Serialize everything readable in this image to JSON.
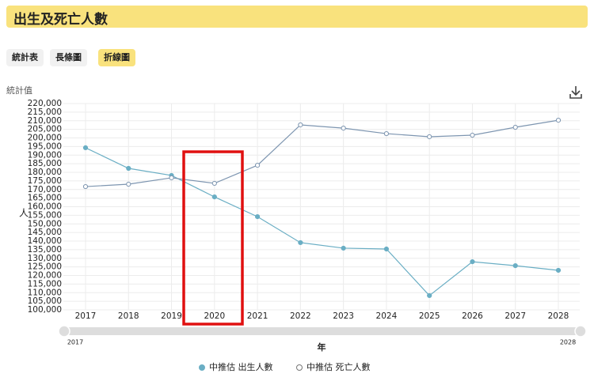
{
  "header": {
    "title": "出生及死亡人數"
  },
  "tabs": [
    "統計表",
    "長條圖",
    "折線圖"
  ],
  "value_caption": "統計值",
  "slider": {
    "start": "2017",
    "end": "2028"
  },
  "chart_data": {
    "type": "line",
    "y_label": "人",
    "x_label": "年",
    "categories": [
      "2017",
      "2018",
      "2019",
      "2020",
      "2021",
      "2022",
      "2023",
      "2024",
      "2025",
      "2026",
      "2027",
      "2028"
    ],
    "series": [
      {
        "name": "中推估 出生人數",
        "color": "#6aaec4",
        "marker": "filled",
        "values": [
          194300,
          182300,
          178200,
          165700,
          154200,
          139100,
          135900,
          135400,
          108300,
          128000,
          125700,
          123000
        ]
      },
      {
        "name": "中推估 死亡人數",
        "color": "#7d95b0",
        "marker": "hollow",
        "values": [
          171700,
          173100,
          176800,
          173600,
          184100,
          207600,
          205700,
          202500,
          200700,
          201600,
          206200,
          210300
        ]
      }
    ],
    "ylim": [
      100000,
      220000
    ],
    "yticks": [
      {
        "value": 100000,
        "label": "100,000"
      },
      {
        "value": 105000,
        "label": "105,000"
      },
      {
        "value": 110000,
        "label": "110,000"
      },
      {
        "value": 115000,
        "label": "115,000"
      },
      {
        "value": 120000,
        "label": "120,000"
      },
      {
        "value": 125000,
        "label": "125,000"
      },
      {
        "value": 130000,
        "label": "130,000"
      },
      {
        "value": 135000,
        "label": "135,000"
      },
      {
        "value": 140000,
        "label": "140,000"
      },
      {
        "value": 145000,
        "label": "145,000"
      },
      {
        "value": 150000,
        "label": "150,000"
      },
      {
        "value": 155000,
        "label": "155,000"
      },
      {
        "value": 160000,
        "label": "160,000"
      },
      {
        "value": 165000,
        "label": "165,000"
      },
      {
        "value": 170000,
        "label": "170,000"
      },
      {
        "value": 175000,
        "label": "175,000"
      },
      {
        "value": 180000,
        "label": "180,000"
      },
      {
        "value": 185000,
        "label": "185,000"
      },
      {
        "value": 190000,
        "label": "190,000"
      },
      {
        "value": 195000,
        "label": "195,000"
      },
      {
        "value": 200000,
        "label": "200,000"
      },
      {
        "value": 205000,
        "label": "205,000"
      },
      {
        "value": 210000,
        "label": "210,000"
      },
      {
        "value": 215000,
        "label": "215,000"
      },
      {
        "value": 220000,
        "label": "220,000"
      }
    ],
    "grid": true
  }
}
